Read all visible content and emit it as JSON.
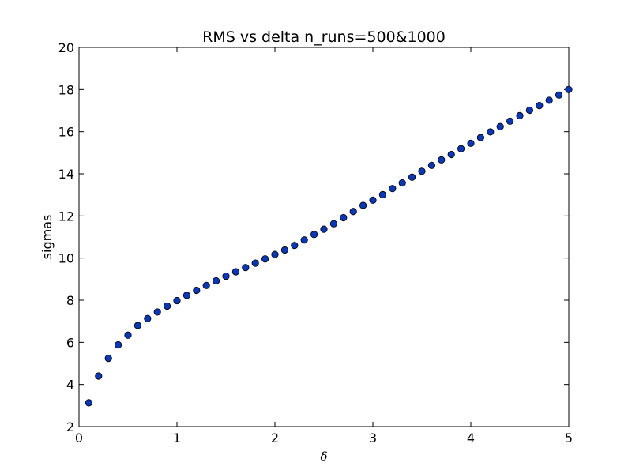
{
  "chart_data": {
    "type": "scatter",
    "title": "RMS vs delta n_runs=500&1000",
    "xlabel": "δ",
    "ylabel": "sigmas",
    "xlim": [
      0,
      5
    ],
    "ylim": [
      2,
      20
    ],
    "grid": false,
    "x_ticks": [
      "0",
      "1",
      "2",
      "3",
      "4",
      "5"
    ],
    "y_ticks": [
      "2",
      "4",
      "6",
      "8",
      "10",
      "12",
      "14",
      "16",
      "18",
      "20"
    ],
    "marker_color": "#0b36b4",
    "series": [
      {
        "x": [
          0.1,
          0.2,
          0.3,
          0.4,
          0.5,
          0.6,
          0.7,
          0.8,
          0.9,
          1.0,
          1.1,
          1.2,
          1.3,
          1.4,
          1.5,
          1.6,
          1.7,
          1.8,
          1.9,
          2.0,
          2.1,
          2.2,
          2.3,
          2.4,
          2.5,
          2.6,
          2.7,
          2.8,
          2.9,
          3.0,
          3.1,
          3.2,
          3.3,
          3.4,
          3.5,
          3.6,
          3.7,
          3.8,
          3.9,
          4.0,
          4.1,
          4.2,
          4.3,
          4.4,
          4.5,
          4.6,
          4.7,
          4.8,
          4.9,
          5.0
        ],
        "y": [
          3.13,
          4.4,
          5.24,
          5.88,
          6.34,
          6.8,
          7.13,
          7.44,
          7.72,
          7.98,
          8.23,
          8.47,
          8.7,
          8.92,
          9.14,
          9.35,
          9.55,
          9.76,
          9.96,
          10.17,
          10.38,
          10.6,
          10.86,
          11.12,
          11.37,
          11.63,
          11.92,
          12.21,
          12.5,
          12.75,
          13.01,
          13.3,
          13.57,
          13.84,
          14.12,
          14.4,
          14.66,
          14.92,
          15.19,
          15.45,
          15.72,
          15.99,
          16.24,
          16.5,
          16.76,
          17.02,
          17.24,
          17.49,
          17.74,
          18.0
        ]
      }
    ]
  }
}
